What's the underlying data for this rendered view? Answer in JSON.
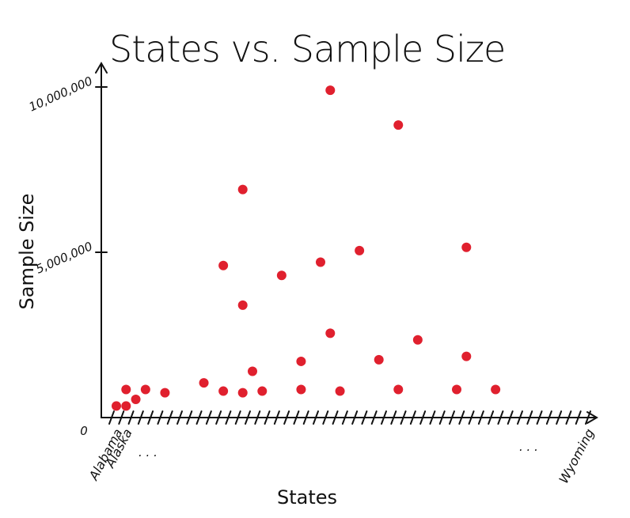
{
  "chart_data": {
    "type": "scatter",
    "title": "States vs. Sample Size",
    "xlabel": "States",
    "ylabel": "Sample Size",
    "ylim": [
      0,
      10000000
    ],
    "y_tick_labels": [
      "0",
      "5,000,000",
      "10,000,000"
    ],
    "y_ticks": [
      0,
      5000000,
      10000000
    ],
    "x_tick_count": 50,
    "x_labels_start": [
      "Alabama",
      "Alaska"
    ],
    "x_labels_end": [
      "Wyoming"
    ],
    "ellipsis_left": ". . .",
    "ellipsis_right": ". . .",
    "grid": false,
    "legend": "none",
    "color": "#e0202e",
    "points": [
      {
        "x": 1,
        "y": 350000
      },
      {
        "x": 2,
        "y": 350000
      },
      {
        "x": 2,
        "y": 850000
      },
      {
        "x": 3,
        "y": 550000
      },
      {
        "x": 4,
        "y": 850000
      },
      {
        "x": 6,
        "y": 750000
      },
      {
        "x": 10,
        "y": 1050000
      },
      {
        "x": 12,
        "y": 4600000
      },
      {
        "x": 12,
        "y": 800000
      },
      {
        "x": 14,
        "y": 6900000
      },
      {
        "x": 14,
        "y": 3400000
      },
      {
        "x": 14,
        "y": 750000
      },
      {
        "x": 15,
        "y": 1400000
      },
      {
        "x": 16,
        "y": 800000
      },
      {
        "x": 18,
        "y": 4300000
      },
      {
        "x": 20,
        "y": 1700000
      },
      {
        "x": 20,
        "y": 850000
      },
      {
        "x": 22,
        "y": 4700000
      },
      {
        "x": 23,
        "y": 9900000
      },
      {
        "x": 23,
        "y": 2550000
      },
      {
        "x": 24,
        "y": 800000
      },
      {
        "x": 26,
        "y": 5050000
      },
      {
        "x": 28,
        "y": 1750000
      },
      {
        "x": 30,
        "y": 8850000
      },
      {
        "x": 30,
        "y": 850000
      },
      {
        "x": 32,
        "y": 2350000
      },
      {
        "x": 36,
        "y": 850000
      },
      {
        "x": 37,
        "y": 1850000
      },
      {
        "x": 37,
        "y": 5150000
      },
      {
        "x": 40,
        "y": 850000
      }
    ]
  }
}
